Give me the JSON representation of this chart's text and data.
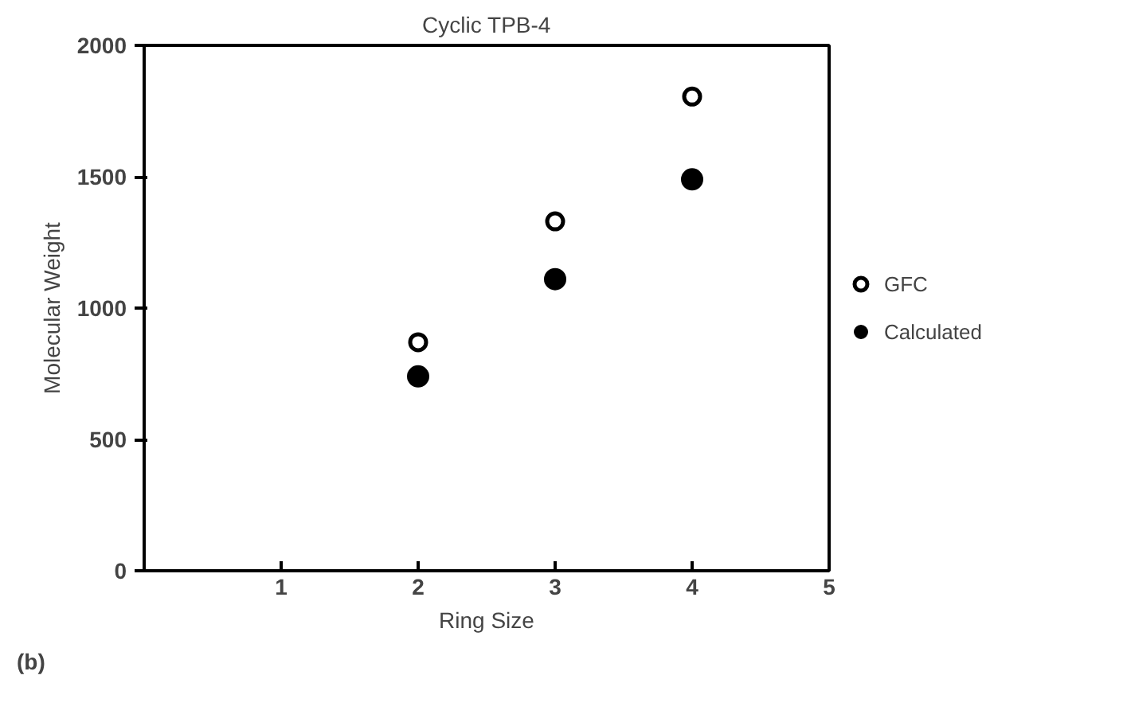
{
  "chart_data": {
    "type": "scatter",
    "title": "Cyclic TPB-4",
    "xlabel": "Ring Size",
    "ylabel": "Molecular Weight",
    "x": [
      2,
      3,
      4
    ],
    "series": [
      {
        "name": "GFC",
        "color": "#000000",
        "values": [
          870,
          1330,
          1805
        ],
        "marker": "open_circle"
      },
      {
        "name": "Calculated",
        "color": "#000000",
        "values": [
          740,
          1110,
          1490
        ],
        "marker": "circle"
      }
    ],
    "xlim": [
      0,
      5
    ],
    "xticks": [
      1,
      2,
      3,
      4,
      5
    ],
    "ylim": [
      0,
      2000
    ],
    "yticks": [
      0,
      500,
      1000,
      1500,
      2000
    ],
    "grid": false,
    "legend": "right",
    "annotations": [
      "(b)"
    ]
  }
}
